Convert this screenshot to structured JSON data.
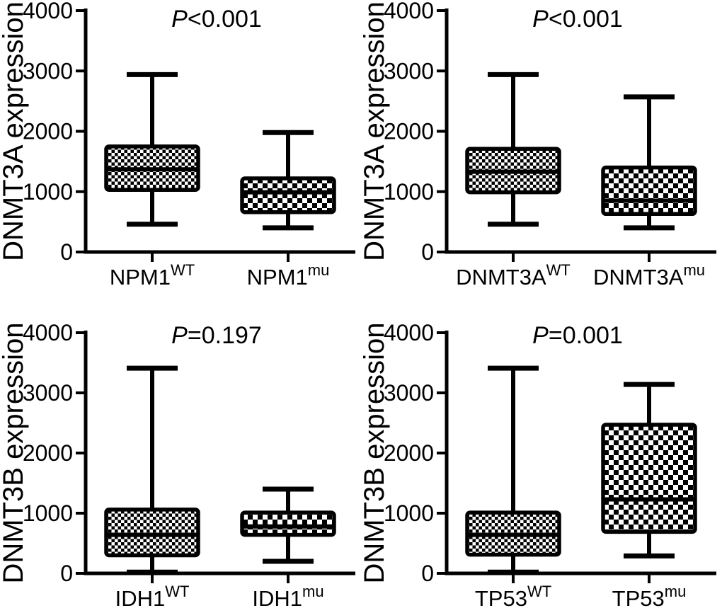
{
  "figure": {
    "kind": "boxplot-grid-2x2",
    "background_color": "#ffffff",
    "ink_color": "#000000"
  },
  "chart_data": [
    {
      "type": "box",
      "position": "top-left",
      "title": {
        "italic": "P",
        "rest": "<0.001"
      },
      "ylabel": "DNMT3A expression",
      "ylim": [
        0,
        4000
      ],
      "yticks": [
        0,
        1000,
        2000,
        3000,
        4000
      ],
      "grid": false,
      "boxes": [
        {
          "category_base": "NPM1",
          "category_sup": "WT",
          "min": 460,
          "q1": 1030,
          "median": 1370,
          "q3": 1750,
          "max": 2940,
          "fill_pattern": "fine-checker"
        },
        {
          "category_base": "NPM1",
          "category_sup": "mu",
          "min": 400,
          "q1": 660,
          "median": 990,
          "q3": 1220,
          "max": 1980,
          "fill_pattern": "coarse-checker"
        }
      ]
    },
    {
      "type": "box",
      "position": "top-right",
      "title": {
        "italic": "P",
        "rest": "<0.001"
      },
      "ylabel": "DNMT3A expression",
      "ylim": [
        0,
        4000
      ],
      "yticks": [
        0,
        1000,
        2000,
        3000,
        4000
      ],
      "grid": false,
      "boxes": [
        {
          "category_base": "DNMT3A",
          "category_sup": "WT",
          "min": 460,
          "q1": 990,
          "median": 1330,
          "q3": 1710,
          "max": 2940,
          "fill_pattern": "fine-checker"
        },
        {
          "category_base": "DNMT3A",
          "category_sup": "mu",
          "min": 400,
          "q1": 630,
          "median": 850,
          "q3": 1400,
          "max": 2570,
          "fill_pattern": "coarse-checker"
        }
      ]
    },
    {
      "type": "box",
      "position": "bottom-left",
      "title": {
        "italic": "P",
        "rest": "=0.197"
      },
      "ylabel": "DNMT3B expression",
      "ylim": [
        0,
        4000
      ],
      "yticks": [
        0,
        1000,
        2000,
        3000,
        4000
      ],
      "grid": false,
      "boxes": [
        {
          "category_base": "IDH1",
          "category_sup": "WT",
          "min": 20,
          "q1": 300,
          "median": 640,
          "q3": 1060,
          "max": 3410,
          "fill_pattern": "fine-checker"
        },
        {
          "category_base": "IDH1",
          "category_sup": "mu",
          "min": 200,
          "q1": 640,
          "median": 780,
          "q3": 1010,
          "max": 1400,
          "fill_pattern": "coarse-checker"
        }
      ]
    },
    {
      "type": "box",
      "position": "bottom-right",
      "title": {
        "italic": "P",
        "rest": "=0.001"
      },
      "ylabel": "DNMT3B expression",
      "ylim": [
        0,
        4000
      ],
      "yticks": [
        0,
        1000,
        2000,
        3000,
        4000
      ],
      "grid": false,
      "boxes": [
        {
          "category_base": "TP53",
          "category_sup": "WT",
          "min": 20,
          "q1": 310,
          "median": 640,
          "q3": 1010,
          "max": 3410,
          "fill_pattern": "fine-checker"
        },
        {
          "category_base": "TP53",
          "category_sup": "mu",
          "min": 290,
          "q1": 690,
          "median": 1230,
          "q3": 2470,
          "max": 3140,
          "fill_pattern": "coarse-checker"
        }
      ]
    }
  ]
}
